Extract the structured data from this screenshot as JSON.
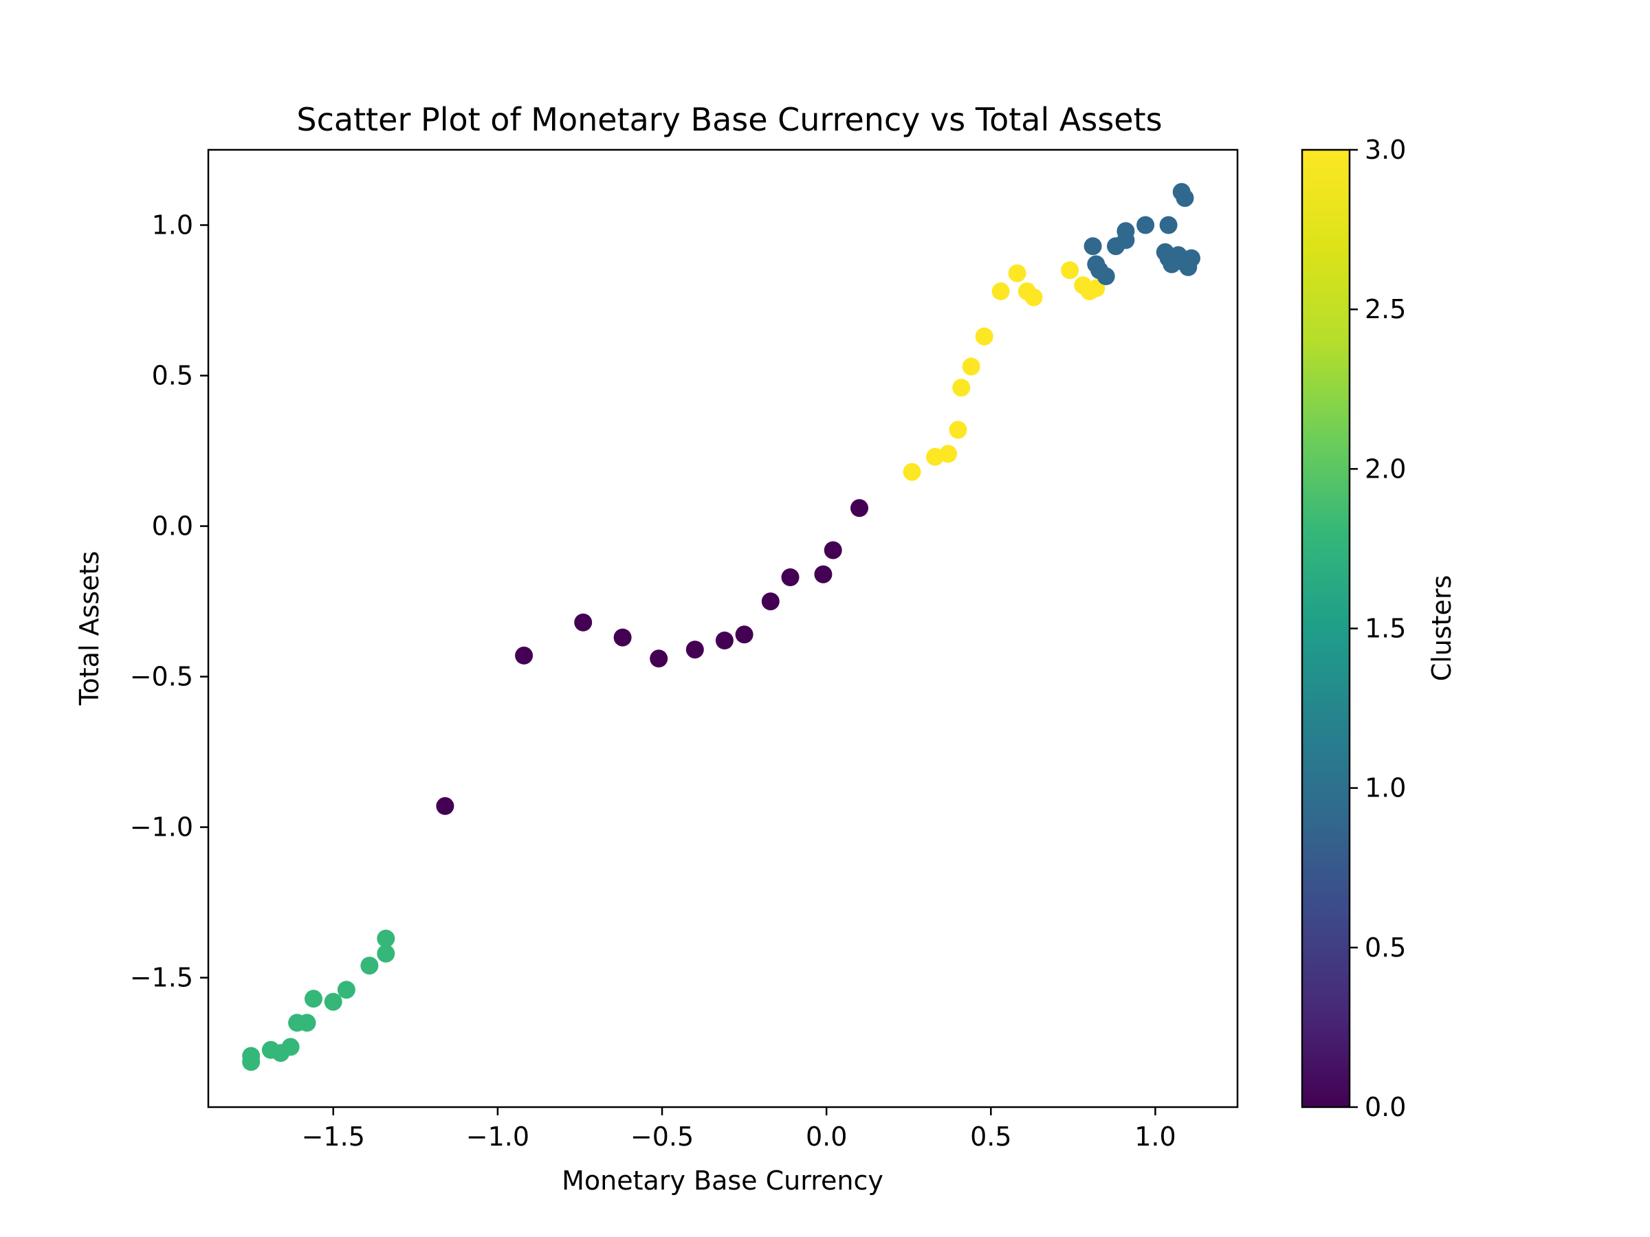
{
  "chart_data": {
    "type": "scatter",
    "title": "Scatter Plot of Monetary Base Currency vs Total Assets",
    "xlabel": "Monetary Base Currency",
    "ylabel": "Total Assets",
    "xlim": [
      -1.88,
      1.25
    ],
    "ylim": [
      -1.93,
      1.25
    ],
    "xticks": [
      -1.5,
      -1.0,
      -0.5,
      0.0,
      0.5,
      1.0
    ],
    "xtick_labels": [
      "−1.5",
      "−1.0",
      "−0.5",
      "0.0",
      "0.5",
      "1.0"
    ],
    "yticks": [
      -1.5,
      -1.0,
      -0.5,
      0.0,
      0.5,
      1.0
    ],
    "ytick_labels": [
      "−1.5",
      "−1.0",
      "−0.5",
      "0.0",
      "0.5",
      "1.0"
    ],
    "grid": false,
    "colormap": "viridis",
    "colorbar": {
      "label": "Clusters",
      "range": [
        0.0,
        3.0
      ],
      "ticks": [
        0.0,
        0.5,
        1.0,
        1.5,
        2.0,
        2.5,
        3.0
      ],
      "tick_labels": [
        "0.0",
        "0.5",
        "1.0",
        "1.5",
        "2.0",
        "2.5",
        "3.0"
      ]
    },
    "cluster_colors": {
      "0": "#440154",
      "1": "#31688e",
      "2": "#35b779",
      "3": "#fde725"
    },
    "points": [
      {
        "x": -1.75,
        "y": -1.76,
        "cluster": 2
      },
      {
        "x": -1.75,
        "y": -1.78,
        "cluster": 2
      },
      {
        "x": -1.69,
        "y": -1.74,
        "cluster": 2
      },
      {
        "x": -1.66,
        "y": -1.75,
        "cluster": 2
      },
      {
        "x": -1.63,
        "y": -1.73,
        "cluster": 2
      },
      {
        "x": -1.61,
        "y": -1.65,
        "cluster": 2
      },
      {
        "x": -1.58,
        "y": -1.65,
        "cluster": 2
      },
      {
        "x": -1.56,
        "y": -1.57,
        "cluster": 2
      },
      {
        "x": -1.5,
        "y": -1.58,
        "cluster": 2
      },
      {
        "x": -1.46,
        "y": -1.54,
        "cluster": 2
      },
      {
        "x": -1.39,
        "y": -1.46,
        "cluster": 2
      },
      {
        "x": -1.34,
        "y": -1.42,
        "cluster": 2
      },
      {
        "x": -1.34,
        "y": -1.37,
        "cluster": 2
      },
      {
        "x": -1.16,
        "y": -0.93,
        "cluster": 0
      },
      {
        "x": -0.92,
        "y": -0.43,
        "cluster": 0
      },
      {
        "x": -0.74,
        "y": -0.32,
        "cluster": 0
      },
      {
        "x": -0.62,
        "y": -0.37,
        "cluster": 0
      },
      {
        "x": -0.51,
        "y": -0.44,
        "cluster": 0
      },
      {
        "x": -0.4,
        "y": -0.41,
        "cluster": 0
      },
      {
        "x": -0.31,
        "y": -0.38,
        "cluster": 0
      },
      {
        "x": -0.25,
        "y": -0.36,
        "cluster": 0
      },
      {
        "x": -0.17,
        "y": -0.25,
        "cluster": 0
      },
      {
        "x": -0.11,
        "y": -0.17,
        "cluster": 0
      },
      {
        "x": -0.01,
        "y": -0.16,
        "cluster": 0
      },
      {
        "x": 0.02,
        "y": -0.08,
        "cluster": 0
      },
      {
        "x": 0.1,
        "y": 0.06,
        "cluster": 0
      },
      {
        "x": 0.26,
        "y": 0.18,
        "cluster": 3
      },
      {
        "x": 0.33,
        "y": 0.23,
        "cluster": 3
      },
      {
        "x": 0.37,
        "y": 0.24,
        "cluster": 3
      },
      {
        "x": 0.4,
        "y": 0.32,
        "cluster": 3
      },
      {
        "x": 0.41,
        "y": 0.46,
        "cluster": 3
      },
      {
        "x": 0.44,
        "y": 0.53,
        "cluster": 3
      },
      {
        "x": 0.48,
        "y": 0.63,
        "cluster": 3
      },
      {
        "x": 0.53,
        "y": 0.78,
        "cluster": 3
      },
      {
        "x": 0.58,
        "y": 0.84,
        "cluster": 3
      },
      {
        "x": 0.61,
        "y": 0.78,
        "cluster": 3
      },
      {
        "x": 0.63,
        "y": 0.76,
        "cluster": 3
      },
      {
        "x": 0.74,
        "y": 0.85,
        "cluster": 3
      },
      {
        "x": 0.78,
        "y": 0.8,
        "cluster": 3
      },
      {
        "x": 0.8,
        "y": 0.78,
        "cluster": 3
      },
      {
        "x": 0.82,
        "y": 0.79,
        "cluster": 3
      },
      {
        "x": 0.81,
        "y": 0.93,
        "cluster": 1
      },
      {
        "x": 0.82,
        "y": 0.87,
        "cluster": 1
      },
      {
        "x": 0.83,
        "y": 0.85,
        "cluster": 1
      },
      {
        "x": 0.85,
        "y": 0.83,
        "cluster": 1
      },
      {
        "x": 0.88,
        "y": 0.93,
        "cluster": 1
      },
      {
        "x": 0.91,
        "y": 0.98,
        "cluster": 1
      },
      {
        "x": 0.91,
        "y": 0.95,
        "cluster": 1
      },
      {
        "x": 0.97,
        "y": 1.0,
        "cluster": 1
      },
      {
        "x": 1.03,
        "y": 0.91,
        "cluster": 1
      },
      {
        "x": 1.04,
        "y": 1.0,
        "cluster": 1
      },
      {
        "x": 1.04,
        "y": 0.89,
        "cluster": 1
      },
      {
        "x": 1.05,
        "y": 0.87,
        "cluster": 1
      },
      {
        "x": 1.07,
        "y": 0.9,
        "cluster": 1
      },
      {
        "x": 1.08,
        "y": 0.88,
        "cluster": 1
      },
      {
        "x": 1.08,
        "y": 1.11,
        "cluster": 1
      },
      {
        "x": 1.09,
        "y": 1.09,
        "cluster": 1
      },
      {
        "x": 1.1,
        "y": 0.86,
        "cluster": 1
      },
      {
        "x": 1.11,
        "y": 0.89,
        "cluster": 1
      }
    ]
  }
}
